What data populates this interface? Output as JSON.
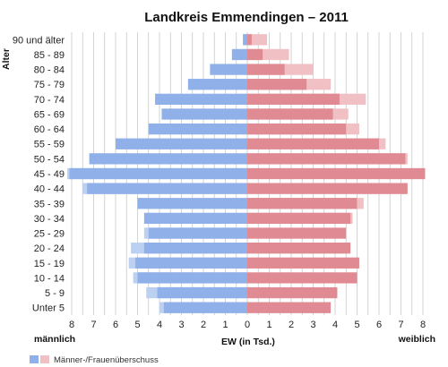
{
  "chart_data": {
    "type": "bar",
    "orientation": "horizontal-pyramid",
    "title": "Landkreis Emmendingen – 2011",
    "ylabel": "Alter",
    "xlabel": "EW (in Tsd.)",
    "left_label": "männlich",
    "right_label": "weiblich",
    "xlim": [
      0,
      8
    ],
    "x_ticks": [
      8,
      7,
      6,
      5,
      4,
      3,
      2,
      1,
      0,
      1,
      2,
      3,
      4,
      5,
      6,
      7,
      8
    ],
    "grid": true,
    "legend_placement": "bottom-left",
    "legend": {
      "label": "Männer-/Frauenüberschuss"
    },
    "categories": [
      "90 und älter",
      "85 - 89",
      "80 - 84",
      "75 - 79",
      "70 - 74",
      "65 - 69",
      "60 - 64",
      "55 - 59",
      "50 - 54",
      "45 - 49",
      "40 - 44",
      "35 - 39",
      "30 - 34",
      "25 - 29",
      "20 - 24",
      "15 - 19",
      "10 - 14",
      "5 - 9",
      "Unter 5"
    ],
    "series": [
      {
        "name": "männlich",
        "values": [
          0.2,
          0.7,
          1.7,
          2.7,
          4.2,
          3.9,
          4.5,
          6.0,
          7.2,
          8.2,
          7.5,
          5.0,
          4.7,
          4.7,
          5.3,
          5.4,
          5.2,
          4.6,
          4.0
        ]
      },
      {
        "name": "weiblich",
        "values": [
          0.9,
          1.9,
          3.0,
          3.8,
          5.4,
          4.6,
          5.1,
          6.3,
          7.3,
          8.1,
          7.3,
          5.3,
          4.8,
          4.5,
          4.7,
          5.1,
          5.0,
          4.1,
          3.8
        ]
      }
    ],
    "colors": {
      "male": "#8fb0e8",
      "male_surplus": "#bcd0f2",
      "female": "#e08a93",
      "female_surplus": "#f0c0c4",
      "grid": "#c8c8c8",
      "bg": "#ffffff"
    }
  }
}
